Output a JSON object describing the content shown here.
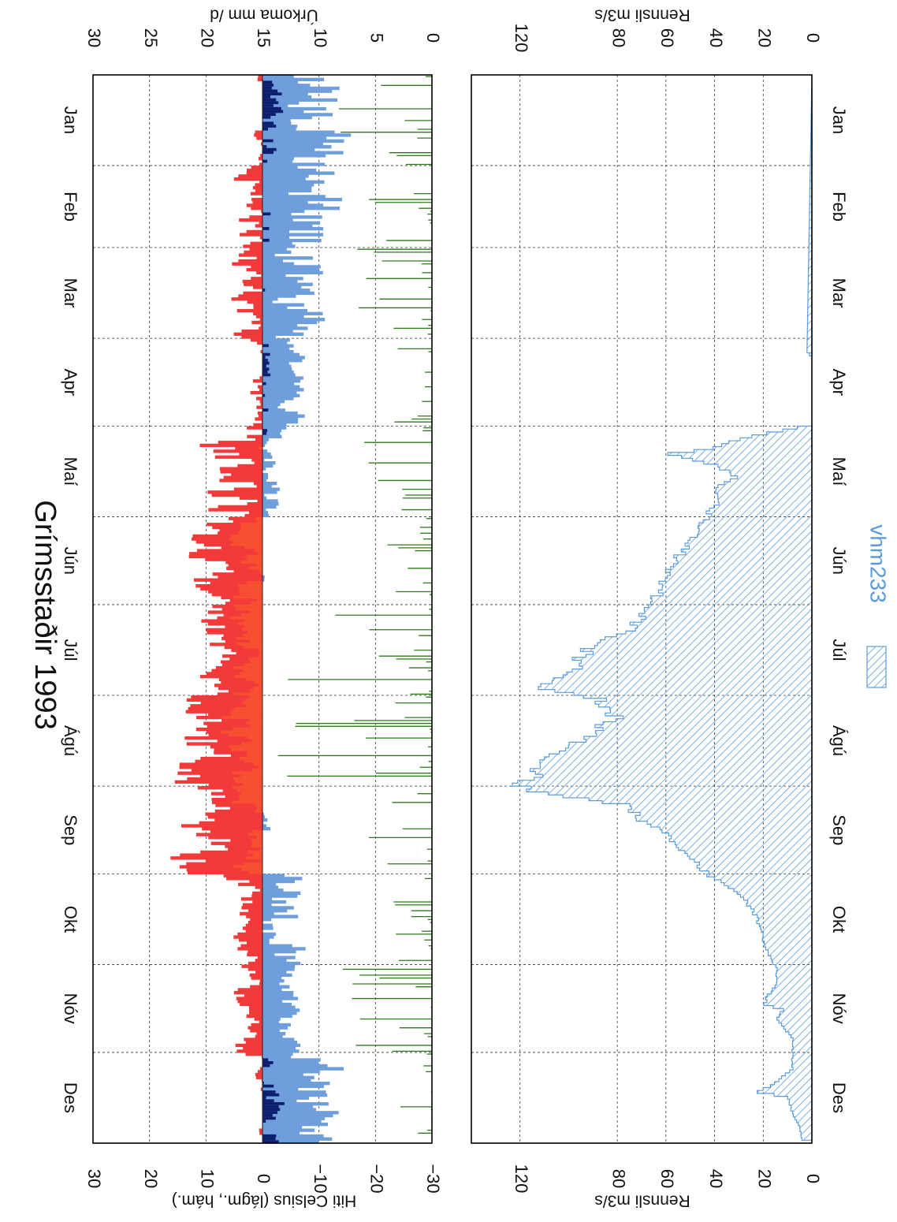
{
  "title": "Grímsstaðir 1993",
  "months": [
    "Jan",
    "Feb",
    "Mar",
    "Apr",
    "Maí",
    "Jún",
    "Júl",
    "Ágú",
    "Sep",
    "Okt",
    "Nóv",
    "Des"
  ],
  "legend": {
    "label": "vhm233",
    "color": "#5b9bdc"
  },
  "colors": {
    "max_temp": "#f23a3a",
    "min_temp": "#6e9edc",
    "min_temp_dark": "#0d1e6e",
    "precip": "#2f7a1e",
    "flow": "#5b9bdc",
    "grid": "#333333"
  },
  "chart_data": [
    {
      "type": "bar",
      "panel": "top",
      "title": "Grímsstaðir 1993",
      "left_axis_label": "Hiti Celsius  (lágm., hám.)",
      "left_ticks": [
        "30",
        "20",
        "10",
        "0",
        "−10",
        "−20",
        "−30"
      ],
      "left_range": [
        -30,
        30
      ],
      "right_axis_label": "Úrkoma  mm /d",
      "right_ticks": [
        "30",
        "25",
        "20",
        "15",
        "10",
        "5",
        "0"
      ],
      "right_range": [
        0,
        30
      ],
      "grid": true,
      "series": [
        {
          "name": "max",
          "monthly_max_peak": [
            4,
            7,
            8,
            4,
            16,
            17,
            14,
            20,
            19,
            7,
            7,
            3
          ],
          "monthly_mean": [
            -1,
            1,
            2,
            0,
            4,
            9,
            8,
            10,
            8,
            2,
            2,
            -2
          ]
        },
        {
          "name": "min",
          "monthly_min_trough": [
            -20,
            -18,
            -17,
            -9,
            -5,
            -2,
            -1,
            -1,
            -3,
            -11,
            -8,
            -18
          ],
          "monthly_mean": [
            -8,
            -7,
            -6,
            -5,
            -1,
            3,
            4,
            5,
            3,
            -3,
            -4,
            -9
          ]
        },
        {
          "name": "precip",
          "monthly_max_peak": [
            9,
            6,
            7,
            4,
            6,
            5,
            14,
            15,
            8,
            4,
            10,
            3
          ]
        }
      ]
    },
    {
      "type": "area",
      "panel": "bottom",
      "axis_label": "Rennsli  m3/s",
      "ticks": [
        "120",
        "80",
        "60",
        "40",
        "20",
        "0"
      ],
      "range": [
        0,
        140
      ],
      "grid": true,
      "series": [
        {
          "name": "vhm233",
          "x_day": [
            1,
            95,
            97,
            120,
            125,
            128,
            130,
            134,
            138,
            142,
            145,
            150,
            160,
            165,
            170,
            180,
            190,
            195,
            200,
            205,
            210,
            214,
            216,
            220,
            225,
            230,
            235,
            240,
            243,
            246,
            250,
            255,
            260,
            265,
            270,
            275,
            280,
            285,
            290,
            295,
            300,
            305,
            310,
            318,
            320,
            323,
            330,
            340,
            345,
            348,
            350,
            355,
            360,
            365
          ],
          "values": [
            0,
            2,
            0,
            0,
            30,
            40,
            60,
            40,
            30,
            40,
            38,
            42,
            50,
            55,
            58,
            65,
            75,
            90,
            95,
            100,
            110,
            85,
            88,
            80,
            90,
            100,
            110,
            115,
            120,
            110,
            75,
            70,
            60,
            55,
            48,
            40,
            30,
            25,
            22,
            20,
            18,
            15,
            14,
            20,
            12,
            14,
            8,
            8,
            15,
            22,
            10,
            8,
            5,
            4
          ]
        }
      ]
    }
  ]
}
